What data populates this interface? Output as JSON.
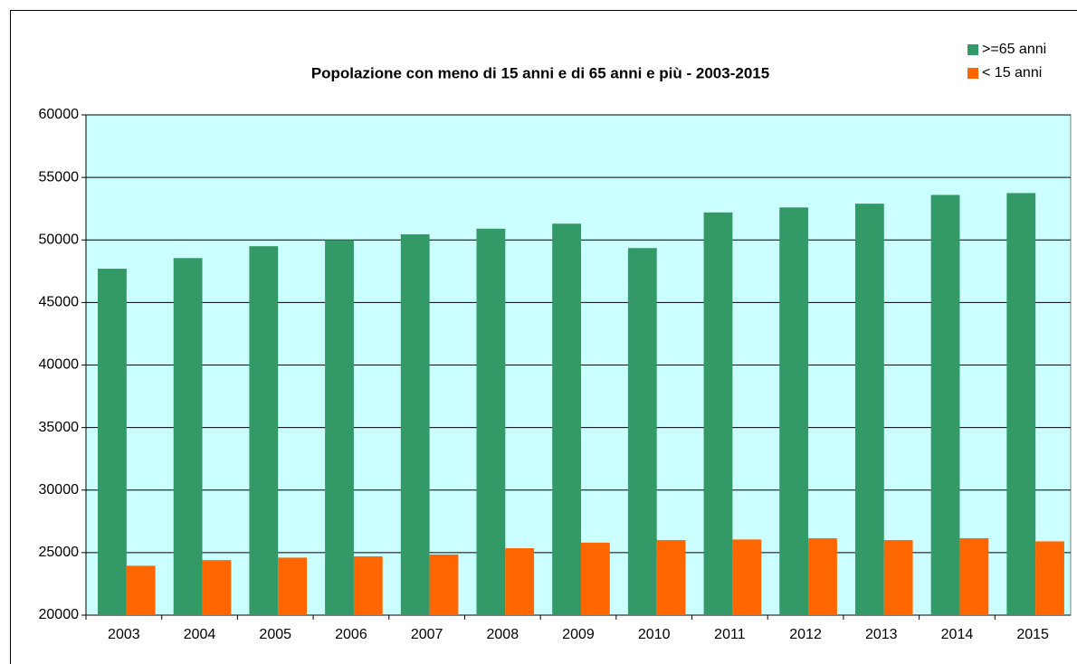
{
  "chart_data": {
    "type": "bar",
    "title": "Popolazione con meno di 15 anni e di 65 anni e più - 2003-2015",
    "categories": [
      "2003",
      "2004",
      "2005",
      "2006",
      "2007",
      "2008",
      "2009",
      "2010",
      "2011",
      "2012",
      "2013",
      "2014",
      "2015"
    ],
    "series": [
      {
        "name": ">=65 anni",
        "color": "#339966",
        "values": [
          47700,
          48550,
          49500,
          50000,
          50450,
          50900,
          51300,
          49350,
          52200,
          52600,
          52900,
          53600,
          53750
        ]
      },
      {
        "name": "< 15 anni",
        "color": "#ff6600",
        "values": [
          23950,
          24400,
          24600,
          24700,
          24850,
          25350,
          25800,
          26000,
          26050,
          26150,
          26000,
          26150,
          25900
        ]
      }
    ],
    "ylim": [
      20000,
      60000
    ],
    "yticks": [
      20000,
      25000,
      30000,
      35000,
      40000,
      45000,
      50000,
      55000,
      60000
    ],
    "grid": true,
    "legend": "top-right"
  }
}
